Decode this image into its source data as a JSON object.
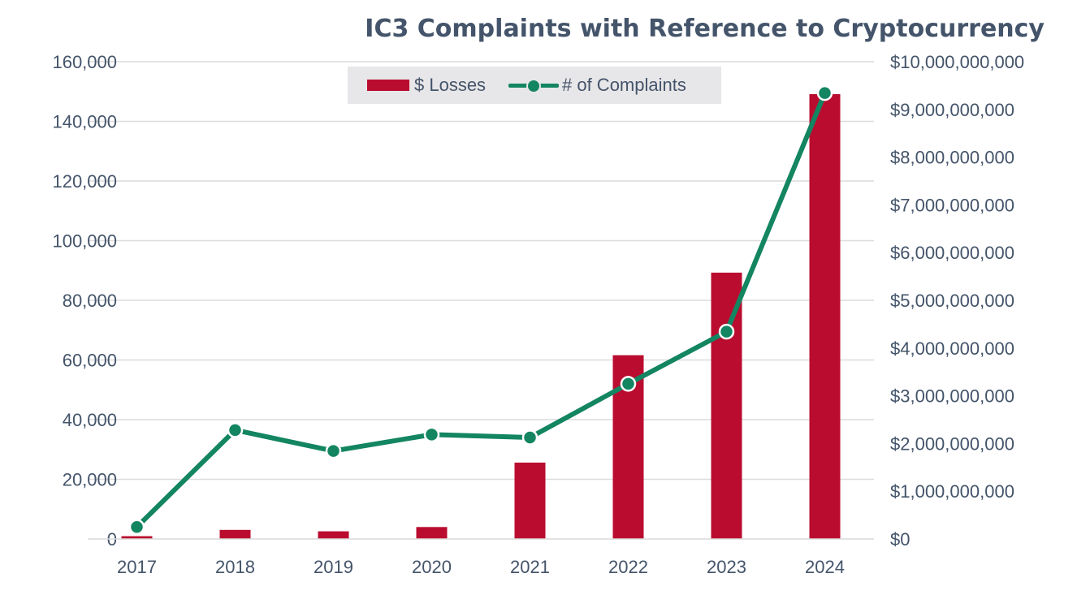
{
  "chart_data": {
    "type": "bar",
    "title": "IC3 Complaints with Reference to Cryptocurrency",
    "categories": [
      "2017",
      "2018",
      "2019",
      "2020",
      "2021",
      "2022",
      "2023",
      "2024"
    ],
    "series": [
      {
        "name": "$ Losses",
        "type": "bar",
        "axis": "right",
        "color": "#ba0c2f",
        "values": [
          58000000,
          190000000,
          160000000,
          250000000,
          1600000000,
          3850000000,
          5580000000,
          9320000000
        ]
      },
      {
        "name": "# of Complaints",
        "type": "line",
        "axis": "left",
        "color": "#138561",
        "values": [
          4000,
          36500,
          29500,
          35000,
          34000,
          52000,
          69500,
          149500
        ]
      }
    ],
    "y_left": {
      "min": 0,
      "max": 160000,
      "step": 20000,
      "tick_labels": [
        "0",
        "20,000",
        "40,000",
        "60,000",
        "80,000",
        "100,000",
        "120,000",
        "140,000",
        "160,000"
      ]
    },
    "y_right": {
      "min": 0,
      "max": 10000000000,
      "step": 1000000000,
      "tick_labels": [
        "$0",
        "$1,000,000,000",
        "$2,000,000,000",
        "$3,000,000,000",
        "$4,000,000,000",
        "$5,000,000,000",
        "$6,000,000,000",
        "$7,000,000,000",
        "$8,000,000,000",
        "$9,000,000,000",
        "$10,000,000,000"
      ]
    },
    "grid": true,
    "legend": {
      "position": "top",
      "items": [
        "$ Losses",
        "# of Complaints"
      ]
    },
    "colors": {
      "text": "#44546a",
      "grid": "#dcdcdc",
      "axis": "#d9d9d9",
      "legend_bg": "#e7e6e8"
    }
  }
}
